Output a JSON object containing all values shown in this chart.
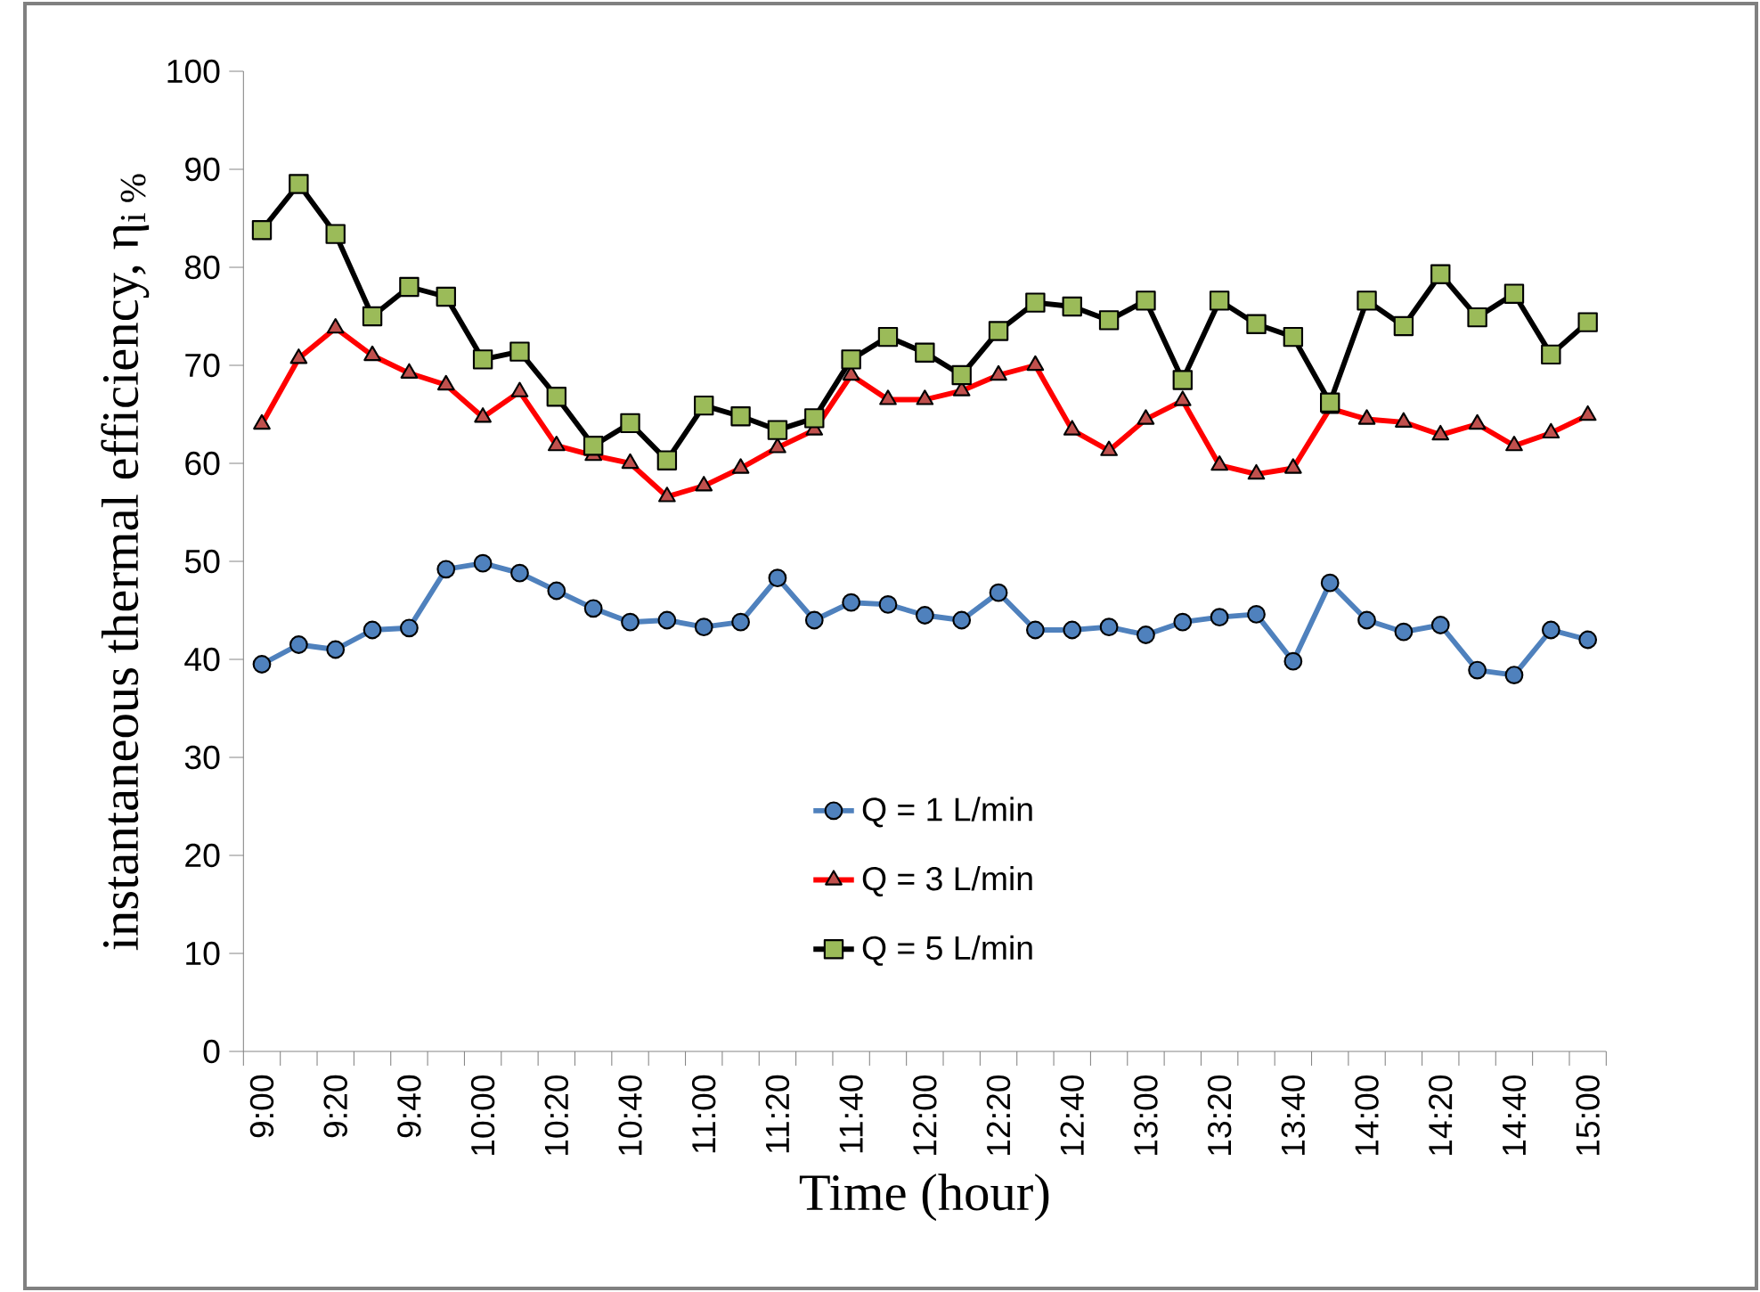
{
  "chart_data": {
    "type": "line",
    "xlabel": "Time (hour)",
    "ylabel": "instantaneous thermal efficiency,  η$_{i %}$",
    "categories": [
      "9:00",
      null,
      "9:20",
      null,
      "9:40",
      null,
      "10:00",
      null,
      "10:20",
      null,
      "10:40",
      null,
      "11:00",
      null,
      "11:20",
      null,
      "11:40",
      null,
      "12:00",
      null,
      "12:20",
      null,
      "12:40",
      null,
      "13:00",
      null,
      "13:20",
      null,
      "13:40",
      null,
      "14:00",
      null,
      "14:20",
      null,
      "14:40",
      null,
      "15:00"
    ],
    "series": [
      {
        "name": "Q = 1 L/min",
        "color": "#4f81bd",
        "marker": "circle",
        "values": [
          39.5,
          41.5,
          41,
          43,
          43.2,
          49.2,
          49.8,
          48.8,
          47,
          45.2,
          43.8,
          44,
          43.3,
          43.8,
          48.3,
          44,
          45.8,
          45.6,
          44.5,
          44,
          46.8,
          43,
          43,
          43.3,
          42.5,
          43.8,
          44.3,
          44.6,
          39.8,
          47.8,
          44,
          42.8,
          43.5,
          38.9,
          38.4,
          43,
          42
        ]
      },
      {
        "name": "Q = 3 L/min",
        "color": "#ff0000",
        "marker": "triangle",
        "values": [
          64,
          70.7,
          73.8,
          71,
          69.2,
          68,
          64.7,
          67.3,
          61.8,
          60.8,
          60,
          56.6,
          57.7,
          59.5,
          61.6,
          63.4,
          69,
          66.5,
          66.5,
          67.4,
          69,
          70,
          63.4,
          61.3,
          64.5,
          66.4,
          59.8,
          58.9,
          59.5,
          65.6,
          64.5,
          64.2,
          62.9,
          64,
          61.8,
          63.1,
          64.9
        ]
      },
      {
        "name": "Q = 5 L/min",
        "color": "#000000",
        "marker": "square",
        "values": [
          83.8,
          88.5,
          83.4,
          75,
          78,
          77,
          70.6,
          71.4,
          66.8,
          61.8,
          64.1,
          60.3,
          65.9,
          64.8,
          63.4,
          64.6,
          70.6,
          72.9,
          71.3,
          69,
          73.5,
          76.4,
          76,
          74.6,
          76.6,
          68.5,
          76.6,
          74.2,
          72.9,
          66.2,
          76.6,
          74,
          79.3,
          74.9,
          77.3,
          71.1,
          74.4
        ]
      }
    ],
    "ylim": [
      0,
      100
    ],
    "yticks": [
      0,
      10,
      20,
      30,
      40,
      50,
      60,
      70,
      80,
      90,
      100
    ],
    "grid": false,
    "legend": "bottom"
  }
}
